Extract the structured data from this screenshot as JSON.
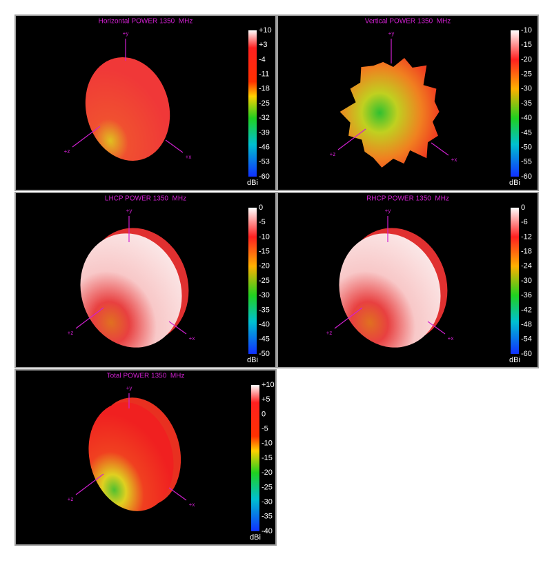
{
  "panels": [
    {
      "title": "Horizontal POWER 1350  MHz",
      "scale": [
        "+10",
        "+3",
        "-4",
        "-11",
        "-18",
        "-25",
        "-32",
        "-39",
        "-46",
        "-53",
        "-60"
      ],
      "unit": "dBi",
      "axes": [
        "+y",
        "+z",
        "+x"
      ]
    },
    {
      "title": "Vertical POWER 1350  MHz",
      "scale": [
        "-10",
        "-15",
        "-20",
        "-25",
        "-30",
        "-35",
        "-40",
        "-45",
        "-50",
        "-55",
        "-60"
      ],
      "unit": "dBi",
      "axes": [
        "+y",
        "+z",
        "+x"
      ]
    },
    {
      "title": "LHCP POWER 1350  MHz",
      "scale": [
        "0",
        "-5",
        "-10",
        "-15",
        "-20",
        "-25",
        "-30",
        "-35",
        "-40",
        "-45",
        "-50"
      ],
      "unit": "dBi",
      "axes": [
        "+y",
        "+z",
        "+x"
      ]
    },
    {
      "title": "RHCP POWER 1350  MHz",
      "scale": [
        "0",
        "-6",
        "-12",
        "-18",
        "-24",
        "-30",
        "-36",
        "-42",
        "-48",
        "-54",
        "-60"
      ],
      "unit": "dBi",
      "axes": [
        "+y",
        "+z",
        "+x"
      ]
    },
    {
      "title": "Total POWER 1350  MHz",
      "scale": [
        "+10",
        "+5",
        "0",
        "-5",
        "-10",
        "-15",
        "-20",
        "-25",
        "-30",
        "-35",
        "-40"
      ],
      "unit": "dBi",
      "axes": [
        "+y",
        "+z",
        "+x"
      ]
    }
  ]
}
